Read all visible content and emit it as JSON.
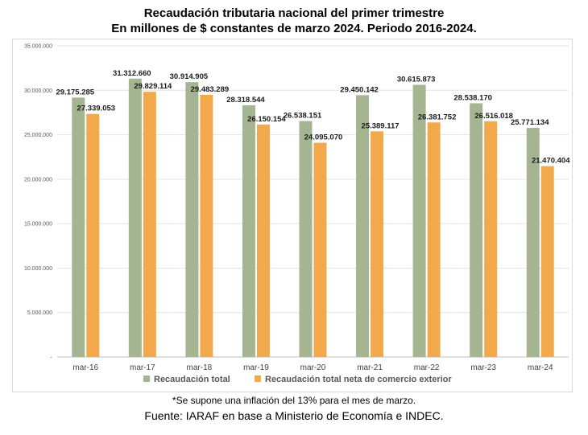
{
  "title_line1": "Recaudación tributaria nacional del primer trimestre",
  "title_line2": "En millones de $ constantes de marzo 2024. Periodo 2016-2024.",
  "footnote": "*Se supone una inflación del 13% para el mes de marzo.",
  "source": "Fuente: IARAF en base a Ministerio de Economía e INDEC.",
  "chart_data": {
    "type": "bar",
    "title": "Recaudación tributaria nacional del primer trimestre",
    "subtitle": "En millones de $ constantes de marzo 2024. Periodo 2016-2024.",
    "categories": [
      "mar-16",
      "mar-17",
      "mar-18",
      "mar-19",
      "mar-20",
      "mar-21",
      "mar-22",
      "mar-23",
      "mar-24"
    ],
    "series": [
      {
        "name": "Recaudación total",
        "color": "#a5b592",
        "values": [
          29175285,
          31312660,
          30914905,
          28318544,
          26538151,
          29450142,
          30615873,
          28538170,
          25771134
        ],
        "labels": [
          "29.175.285",
          "31.312.660",
          "30.914.905",
          "28.318.544",
          "26.538.151",
          "29.450.142",
          "30.615.873",
          "28.538.170",
          "25.771.134"
        ]
      },
      {
        "name": "Recaudación total neta de comercio exterior",
        "color": "#f2a94c",
        "values": [
          27339053,
          29829114,
          29483289,
          26150154,
          24095070,
          25389117,
          26381752,
          26516018,
          21470404
        ],
        "labels": [
          "27.339.053",
          "29.829.114",
          "29.483.289",
          "26.150.154",
          "24.095.070",
          "25.389.117",
          "26.381.752",
          "26.516.018",
          "21.470.404"
        ]
      }
    ],
    "ylim": [
      0,
      35000000
    ],
    "yticks": [
      0,
      5000000,
      10000000,
      15000000,
      20000000,
      25000000,
      30000000,
      35000000
    ],
    "ytick_labels": [
      "-",
      "5.000.000",
      "10.000.000",
      "15.000.000",
      "20.000.000",
      "25.000.000",
      "30.000.000",
      "35.000.000"
    ],
    "grid": true,
    "legend_position": "bottom"
  }
}
